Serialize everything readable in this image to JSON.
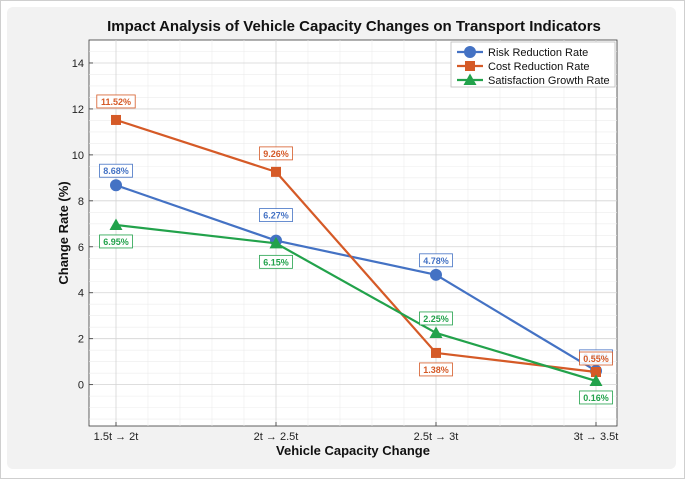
{
  "chart_data": {
    "type": "line",
    "title": "Impact Analysis of Vehicle Capacity Changes on Transport Indicators",
    "xlabel": "Vehicle Capacity Change",
    "ylabel": "Change Rate (%)",
    "categories": [
      "1.5t → 2t",
      "2t → 2.5t",
      "2.5t → 3t",
      "3t → 3.5t"
    ],
    "ylim": [
      -1.8,
      15
    ],
    "yticks": [
      0,
      2,
      4,
      6,
      8,
      10,
      12,
      14
    ],
    "grid": true,
    "legend_position": "top-right",
    "series": [
      {
        "name": "Risk Reduction Rate",
        "color": "#4472c4",
        "marker": "circle",
        "values": [
          8.68,
          6.27,
          4.78,
          0.6
        ],
        "labels": [
          "8.68%",
          "6.27%",
          "4.78%",
          "0.60%"
        ]
      },
      {
        "name": "Cost Reduction Rate",
        "color": "#d55a27",
        "marker": "square",
        "values": [
          11.52,
          9.26,
          1.38,
          0.55
        ],
        "labels": [
          "11.52%",
          "9.26%",
          "1.38%",
          "0.55%"
        ]
      },
      {
        "name": "Satisfaction Growth Rate",
        "color": "#22a24b",
        "marker": "triangle",
        "values": [
          6.95,
          6.15,
          2.25,
          0.16
        ],
        "labels": [
          "6.95%",
          "6.15%",
          "2.25%",
          "0.16%"
        ]
      }
    ]
  }
}
